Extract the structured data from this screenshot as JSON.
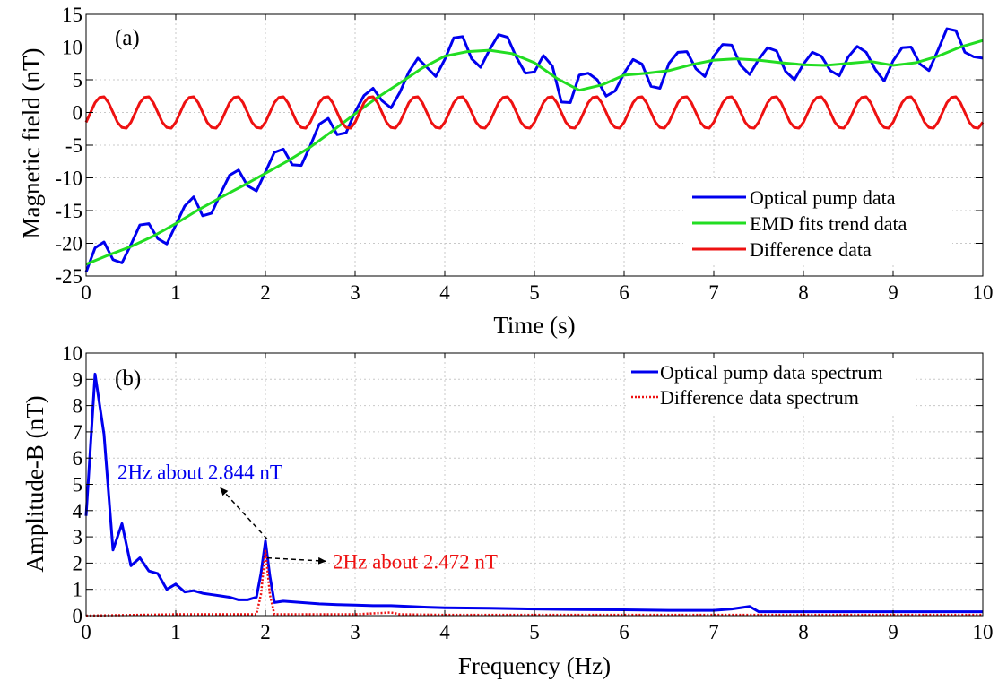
{
  "chart_data": [
    {
      "type": "line",
      "panel_label": "(a)",
      "xlabel": "Time (s)",
      "ylabel": "Magnetic field (nT)",
      "xlim": [
        0,
        10
      ],
      "ylim": [
        -25,
        15
      ],
      "xticks": [
        "0",
        "1",
        "2",
        "3",
        "4",
        "5",
        "6",
        "7",
        "8",
        "9",
        "10"
      ],
      "yticks": [
        "-25",
        "-20",
        "-15",
        "-10",
        "-5",
        "0",
        "5",
        "10",
        "15"
      ],
      "grid": true,
      "legend_position": "lower-right",
      "colors": {
        "optical": "#0000ee",
        "trend": "#22dd22",
        "difference": "#ee1111"
      },
      "series": [
        {
          "name": "Optical pump data",
          "x": [
            0,
            0.1,
            0.2,
            0.3,
            0.4,
            0.5,
            0.6,
            0.7,
            0.8,
            0.9,
            1.0,
            1.1,
            1.2,
            1.3,
            1.4,
            1.5,
            1.6,
            1.7,
            1.8,
            1.9,
            2.0,
            2.1,
            2.2,
            2.3,
            2.4,
            2.5,
            2.6,
            2.7,
            2.8,
            2.9,
            3.0,
            3.1,
            3.2,
            3.3,
            3.4,
            3.5,
            3.6,
            3.7,
            3.8,
            3.9,
            4.0,
            4.1,
            4.2,
            4.3,
            4.4,
            4.5,
            4.6,
            4.7,
            4.8,
            4.9,
            5.0,
            5.1,
            5.2,
            5.3,
            5.4,
            5.5,
            5.6,
            5.7,
            5.8,
            5.9,
            6.0,
            6.1,
            6.2,
            6.3,
            6.4,
            6.5,
            6.6,
            6.7,
            6.8,
            6.9,
            7.0,
            7.1,
            7.2,
            7.3,
            7.4,
            7.5,
            7.6,
            7.7,
            7.8,
            7.9,
            8.0,
            8.1,
            8.2,
            8.3,
            8.4,
            8.5,
            8.6,
            8.7,
            8.8,
            8.9,
            9.0,
            9.1,
            9.2,
            9.3,
            9.4,
            9.5,
            9.6,
            9.7,
            9.8,
            9.9,
            10.0
          ],
          "values": [
            -24.4,
            -20.7,
            -19.8,
            -22.5,
            -23.0,
            -20.2,
            -17.2,
            -17.0,
            -19.3,
            -20.1,
            -17.2,
            -14.3,
            -12.9,
            -15.8,
            -15.4,
            -12.4,
            -9.6,
            -8.8,
            -11.2,
            -12.0,
            -9.1,
            -6.1,
            -5.6,
            -8.0,
            -8.1,
            -5.1,
            -1.8,
            -0.9,
            -3.4,
            -3.1,
            0.1,
            2.6,
            3.7,
            1.8,
            0.7,
            3.1,
            6.2,
            8.3,
            6.9,
            5.5,
            8.1,
            11.4,
            11.6,
            8.2,
            6.9,
            9.6,
            11.9,
            11.5,
            8.4,
            6.0,
            6.2,
            8.7,
            7.1,
            1.6,
            1.5,
            5.7,
            6.0,
            5.0,
            2.5,
            3.3,
            6.0,
            8.1,
            7.4,
            4.0,
            3.7,
            7.5,
            9.2,
            9.3,
            6.7,
            5.5,
            8.6,
            10.4,
            10.3,
            7.2,
            5.8,
            8.1,
            9.9,
            9.4,
            6.3,
            5.0,
            7.4,
            9.2,
            8.6,
            6.4,
            5.6,
            8.5,
            10.1,
            9.2,
            6.6,
            4.8,
            7.9,
            9.9,
            10.0,
            7.4,
            6.4,
            9.5,
            12.8,
            12.5,
            9.2,
            8.5,
            8.3
          ]
        },
        {
          "name": "EMD fits trend data",
          "x": [
            0,
            0.25,
            0.5,
            0.75,
            1.0,
            1.25,
            1.5,
            1.75,
            2.0,
            2.25,
            2.5,
            2.75,
            3.0,
            3.25,
            3.5,
            3.75,
            4.0,
            4.25,
            4.5,
            4.75,
            5.0,
            5.25,
            5.5,
            5.75,
            6.0,
            6.25,
            6.5,
            6.75,
            7.0,
            7.25,
            7.5,
            7.75,
            8.0,
            8.25,
            8.5,
            8.75,
            9.0,
            9.25,
            9.5,
            9.75,
            10.0
          ],
          "values": [
            -23.2,
            -21.8,
            -20.5,
            -18.9,
            -17.0,
            -14.9,
            -13.0,
            -11.2,
            -9.3,
            -7.4,
            -5.3,
            -2.8,
            -0.2,
            2.3,
            4.5,
            6.8,
            8.6,
            9.3,
            9.5,
            9.0,
            7.6,
            5.2,
            3.4,
            4.2,
            5.7,
            6.0,
            6.4,
            7.3,
            8.0,
            8.2,
            8.0,
            7.6,
            7.3,
            7.2,
            7.5,
            7.8,
            7.2,
            7.6,
            8.6,
            10.0,
            11.0
          ]
        },
        {
          "name": "Difference data",
          "x": [
            0,
            0.05,
            0.1,
            0.15,
            0.2,
            0.25,
            0.3,
            0.35,
            0.4,
            0.45,
            0.5,
            0.55,
            0.6,
            0.65,
            0.7,
            0.75,
            0.8,
            0.85,
            0.9,
            0.95,
            1.0,
            1.05,
            1.1,
            1.15,
            1.2,
            1.25,
            1.3,
            1.35,
            1.4,
            1.45,
            1.5,
            1.55,
            1.6,
            1.65,
            1.7,
            1.75,
            1.8,
            1.85,
            1.9,
            1.95,
            2.0,
            2.05,
            2.1,
            2.15,
            2.2,
            2.25,
            2.3,
            2.35,
            2.4,
            2.45,
            2.5,
            2.55,
            2.6,
            2.65,
            2.7,
            2.75,
            2.8,
            2.85,
            2.9,
            2.95,
            3.0,
            3.05,
            3.1,
            3.15,
            3.2,
            3.25,
            3.3,
            3.35,
            3.4,
            3.45,
            3.5,
            3.55,
            3.6,
            3.65,
            3.7,
            3.75,
            3.8,
            3.85,
            3.9,
            3.95,
            4.0,
            4.05,
            4.1,
            4.15,
            4.2,
            4.25,
            4.3,
            4.35,
            4.4,
            4.45,
            4.5,
            4.55,
            4.6,
            4.65,
            4.7,
            4.75,
            4.8,
            4.85,
            4.9,
            4.95,
            5.0,
            5.05,
            5.1,
            5.15,
            5.2,
            5.25,
            5.3,
            5.35,
            5.4,
            5.45,
            5.5,
            5.55,
            5.6,
            5.65,
            5.7,
            5.75,
            5.8,
            5.85,
            5.9,
            5.95,
            6.0,
            6.05,
            6.1,
            6.15,
            6.2,
            6.25,
            6.3,
            6.35,
            6.4,
            6.45,
            6.5,
            6.55,
            6.6,
            6.65,
            6.7,
            6.75,
            6.8,
            6.85,
            6.9,
            6.95,
            7.0,
            7.05,
            7.1,
            7.15,
            7.2,
            7.25,
            7.3,
            7.35,
            7.4,
            7.45,
            7.5,
            7.55,
            7.6,
            7.65,
            7.7,
            7.75,
            7.8,
            7.85,
            7.9,
            7.95,
            8.0,
            8.05,
            8.1,
            8.15,
            8.2,
            8.25,
            8.3,
            8.35,
            8.4,
            8.45,
            8.5,
            8.55,
            8.6,
            8.65,
            8.7,
            8.75,
            8.8,
            8.85,
            8.9,
            8.95,
            9.0,
            9.05,
            9.1,
            9.15,
            9.2,
            9.25,
            9.3,
            9.35,
            9.4,
            9.45,
            9.5,
            9.55,
            9.6,
            9.65,
            9.7,
            9.75,
            9.8,
            9.85,
            9.9,
            9.95,
            10.0
          ],
          "values": [
            -1.5,
            0.0,
            1.5,
            2.3,
            2.4,
            1.5,
            0.0,
            -1.5,
            -2.3,
            -2.4,
            -1.5,
            0.0,
            1.5,
            2.3,
            2.4,
            1.5,
            0.0,
            -1.5,
            -2.3,
            -2.4,
            -1.5,
            0.0,
            1.5,
            2.3,
            2.4,
            1.5,
            0.0,
            -1.5,
            -2.3,
            -2.4,
            -1.5,
            0.0,
            1.5,
            2.3,
            2.4,
            1.5,
            0.0,
            -1.5,
            -2.3,
            -2.4,
            -1.5,
            0.0,
            1.5,
            2.3,
            2.4,
            1.5,
            0.0,
            -1.5,
            -2.3,
            -2.4,
            -1.5,
            0.0,
            1.5,
            2.3,
            2.4,
            1.5,
            0.0,
            -1.5,
            -2.3,
            -2.4,
            -1.5,
            0.0,
            1.5,
            2.3,
            2.4,
            1.5,
            0.0,
            -1.5,
            -2.3,
            -2.4,
            -1.5,
            0.0,
            1.5,
            2.3,
            2.4,
            1.5,
            0.0,
            -1.5,
            -2.3,
            -2.4,
            -1.5,
            0.0,
            1.5,
            2.3,
            2.4,
            1.5,
            0.0,
            -1.5,
            -2.3,
            -2.4,
            -1.5,
            0.0,
            1.5,
            2.3,
            2.4,
            1.5,
            0.0,
            -1.5,
            -2.3,
            -2.4,
            -1.5,
            0.0,
            1.5,
            2.3,
            2.4,
            1.5,
            0.0,
            -1.5,
            -2.3,
            -2.4,
            -1.5,
            0.0,
            1.5,
            2.3,
            2.4,
            1.5,
            0.0,
            -1.5,
            -2.3,
            -2.4,
            -1.5,
            0.0,
            1.5,
            2.3,
            2.4,
            1.5,
            0.0,
            -1.5,
            -2.3,
            -2.4,
            -1.5,
            0.0,
            1.5,
            2.3,
            2.4,
            1.5,
            0.0,
            -1.5,
            -2.3,
            -2.4,
            -1.5,
            0.0,
            1.5,
            2.3,
            2.4,
            1.5,
            0.0,
            -1.5,
            -2.3,
            -2.4,
            -1.5,
            0.0,
            1.5,
            2.3,
            2.4,
            1.5,
            0.0,
            -1.5,
            -2.3,
            -2.4,
            -1.5,
            0.0,
            1.5,
            2.3,
            2.4,
            1.5,
            0.0,
            -1.5,
            -2.3,
            -2.4,
            -1.5,
            0.0,
            1.5,
            2.3,
            2.4,
            1.5,
            0.0,
            -1.5,
            -2.3,
            -2.4,
            -1.5,
            0.0,
            1.5,
            2.3,
            2.4,
            1.5,
            0.0,
            -1.5,
            -2.3,
            -2.4,
            -1.5,
            0.0,
            1.5,
            2.3,
            2.4,
            1.5,
            0.0,
            -1.5,
            -2.3,
            -2.4,
            -1.5
          ]
        }
      ]
    },
    {
      "type": "line",
      "panel_label": "(b)",
      "xlabel": "Frequency (Hz)",
      "ylabel": "Amplitude-B (nT)",
      "xlim": [
        0,
        10
      ],
      "ylim": [
        0,
        10
      ],
      "xticks": [
        "0",
        "1",
        "2",
        "3",
        "4",
        "5",
        "6",
        "7",
        "8",
        "9",
        "10"
      ],
      "yticks": [
        "0",
        "1",
        "2",
        "3",
        "4",
        "5",
        "6",
        "7",
        "8",
        "9",
        "10"
      ],
      "grid": true,
      "legend_position": "top-right",
      "colors": {
        "optical": "#0000ee",
        "difference": "#ee1111"
      },
      "series": [
        {
          "name": "Optical pump data spectrum",
          "style": "solid",
          "x": [
            0,
            0.1,
            0.2,
            0.3,
            0.4,
            0.5,
            0.6,
            0.7,
            0.8,
            0.9,
            1.0,
            1.1,
            1.2,
            1.3,
            1.4,
            1.5,
            1.6,
            1.7,
            1.8,
            1.9,
            1.95,
            2.0,
            2.05,
            2.1,
            2.2,
            2.4,
            2.6,
            2.8,
            3.0,
            3.2,
            3.4,
            3.6,
            3.8,
            4.0,
            4.5,
            5.0,
            5.5,
            6.0,
            6.5,
            7.0,
            7.2,
            7.4,
            7.5,
            8.0,
            8.5,
            9.0,
            9.5,
            10.0
          ],
          "values": [
            3.8,
            9.2,
            6.9,
            2.5,
            3.5,
            1.9,
            2.2,
            1.7,
            1.6,
            1.0,
            1.2,
            0.9,
            0.95,
            0.85,
            0.8,
            0.75,
            0.7,
            0.6,
            0.6,
            0.7,
            1.6,
            2.84,
            1.5,
            0.5,
            0.55,
            0.5,
            0.45,
            0.42,
            0.4,
            0.38,
            0.38,
            0.35,
            0.32,
            0.3,
            0.28,
            0.25,
            0.23,
            0.22,
            0.2,
            0.2,
            0.25,
            0.35,
            0.15,
            0.15,
            0.15,
            0.15,
            0.15,
            0.15
          ]
        },
        {
          "name": "Difference data spectrum",
          "style": "dotted",
          "x": [
            0,
            1.0,
            1.9,
            1.95,
            2.0,
            2.05,
            2.1,
            3.0,
            3.4,
            3.5,
            4.0,
            5.0,
            6.0,
            7.0,
            8.0,
            9.0,
            10.0
          ],
          "values": [
            0.0,
            0.05,
            0.05,
            0.8,
            2.47,
            0.8,
            0.05,
            0.05,
            0.12,
            0.05,
            0.03,
            0.03,
            0.03,
            0.03,
            0.03,
            0.03,
            0.03
          ]
        }
      ],
      "annotations": [
        {
          "text": "2Hz  about 2.844 nT",
          "color": "#0000ee",
          "point": [
            2.0,
            2.844
          ],
          "text_at": [
            0.35,
            5.2
          ]
        },
        {
          "text": "2Hz  about 2.472 nT",
          "color": "#ee1111",
          "point": [
            2.0,
            2.472
          ],
          "text_at": [
            2.75,
            1.8
          ]
        }
      ]
    }
  ]
}
